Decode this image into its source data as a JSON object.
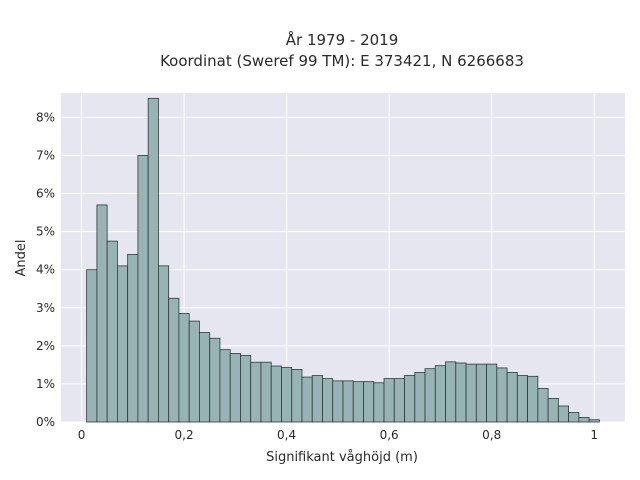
{
  "chart_data": {
    "type": "bar",
    "title_line1": "År 1979 - 2019",
    "title_line2": "Koordinat (Sweref 99 TM): E 373421, N 6266683",
    "xlabel": "Signifikant våghöjd (m)",
    "ylabel": "Andel",
    "xlim": [
      -0.04,
      1.06
    ],
    "ylim": [
      0,
      0.0864
    ],
    "bin_width": 0.02,
    "bin_start": 0.01,
    "x_ticks": [
      0,
      0.2,
      0.4,
      0.6,
      0.8,
      1
    ],
    "x_tick_labels": [
      "0",
      "0,2",
      "0,4",
      "0,6",
      "0,8",
      "1"
    ],
    "y_ticks": [
      0,
      0.01,
      0.02,
      0.03,
      0.04,
      0.05,
      0.06,
      0.07,
      0.08
    ],
    "y_tick_labels": [
      "0%",
      "1%",
      "2%",
      "3%",
      "4%",
      "5%",
      "6%",
      "7%",
      "8%"
    ],
    "grid": true,
    "values": [
      0.04,
      0.057,
      0.0475,
      0.041,
      0.044,
      0.07,
      0.085,
      0.041,
      0.0325,
      0.0285,
      0.0265,
      0.0235,
      0.022,
      0.019,
      0.018,
      0.0175,
      0.0157,
      0.0157,
      0.0147,
      0.0143,
      0.0138,
      0.0118,
      0.0122,
      0.0114,
      0.0108,
      0.0108,
      0.0106,
      0.0106,
      0.0103,
      0.0114,
      0.0114,
      0.0122,
      0.013,
      0.014,
      0.0148,
      0.0158,
      0.0155,
      0.0152,
      0.0152,
      0.0152,
      0.0142,
      0.013,
      0.0122,
      0.012,
      0.0088,
      0.0062,
      0.0042,
      0.0025,
      0.0012,
      0.0006
    ],
    "colors": {
      "bar_fill": "#98b3b3",
      "bar_stroke": "#2f3a3a",
      "plot_background": "#e5e6ef",
      "grid": "#ffffff"
    }
  }
}
